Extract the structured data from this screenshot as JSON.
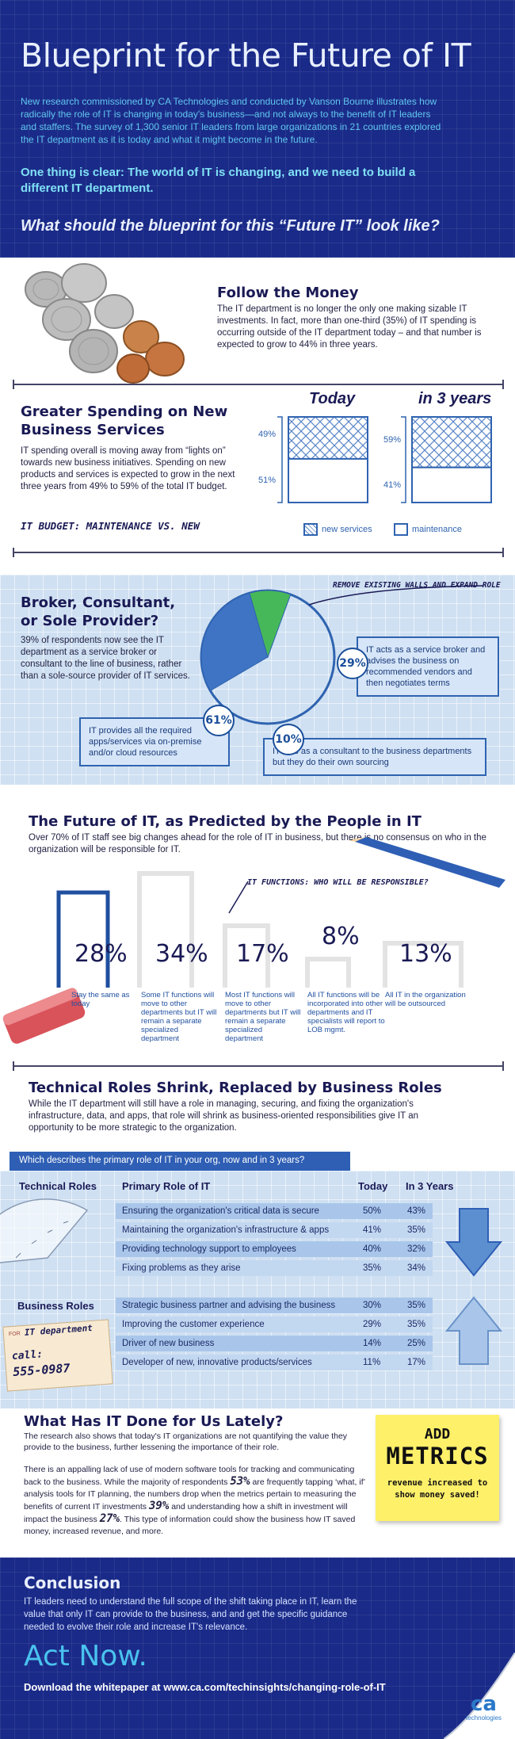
{
  "header": {
    "title": "Blueprint for the Future of IT",
    "intro": "New research commissioned by CA Technologies and conducted by Vanson Bourne illustrates how radically the role of IT is changing in today's business—and not always to the benefit of IT leaders and staffers. The survey of 1,300 senior IT leaders from large organizations in 21 countries explored the IT department as it is today and what it might become in the future.",
    "highlight": "One thing is clear: The world of IT is changing, and we need to build a different IT department.",
    "question": "What should the blueprint for this “Future IT” look like?"
  },
  "money": {
    "title": "Follow the Money",
    "body": "The IT department is no longer the only one making sizable IT investments. In fact, more than one-third (35%) of IT spending is occurring outside of the IT department today – and that number is expected to grow to 44% in three years."
  },
  "spending": {
    "title": "Greater Spending on New Business Services",
    "body": "IT spending overall is moving away from “lights on” towards new business initiatives. Spending on new products and services is expected to grow in the next three years from 49% to 59% of the total IT budget.",
    "budget_label": "IT BUDGET: MAINTENANCE VS. NEW",
    "col_today": "Today",
    "col_3y": "in 3 years",
    "today_new": "49%",
    "today_maint": "51%",
    "future_new": "59%",
    "future_maint": "41%",
    "legend_new": "new services",
    "legend_maint": "maintenance",
    "chart_data": {
      "type": "bar",
      "categories": [
        "Today",
        "in 3 years"
      ],
      "series": [
        {
          "name": "new services",
          "values": [
            49,
            59
          ]
        },
        {
          "name": "maintenance",
          "values": [
            51,
            41
          ]
        }
      ],
      "title": "IT BUDGET: MAINTENANCE VS. NEW"
    }
  },
  "broker": {
    "title": "Broker, Consultant, or Sole Provider?",
    "body": "39% of respondents now see the IT department as a service broker or consultant to the line of business, rather than a sole-source provider of IT services.",
    "banner": "REMOVE EXISTING WALLS AND EXPAND ROLE",
    "pct_broker": "29%",
    "text_broker": "IT acts as a service broker and advises the business on recommended vendors and then negotiates terms",
    "pct_provider": "61%",
    "text_provider": "IT provides all the required apps/services via on-premise and/or cloud resources",
    "pct_consult": "10%",
    "text_consult": "IT acts as a consultant to the business departments but they do their own sourcing",
    "chart_data": {
      "type": "pie",
      "categories": [
        "provider",
        "broker",
        "consultant"
      ],
      "values": [
        61,
        29,
        10
      ]
    }
  },
  "future": {
    "title": "The Future of IT, as Predicted by the People in IT",
    "body": "Over 70% of IT staff see big changes ahead for the role of IT in business, but there is no consensus on who in the organization will be responsible for IT.",
    "question_label": "IT FUNCTIONS: WHO WILL BE RESPONSIBLE?",
    "items": [
      {
        "pct": "28%",
        "text": "Stay the same as today"
      },
      {
        "pct": "34%",
        "text": "Some IT functions will move to other departments but IT will remain a separate specialized department"
      },
      {
        "pct": "17%",
        "text": "Most IT functions will move to other departments but IT will remain a separate specialized department"
      },
      {
        "pct": "8%",
        "text": "All IT functions will be incorporated into other departments and IT specialists will report to LOB mgmt."
      },
      {
        "pct": "13%",
        "text": "All IT in the organization will be outsourced"
      }
    ]
  },
  "roles": {
    "title": "Technical Roles Shrink, Replaced by Business Roles",
    "body": "While the IT department will still have a role in managing, securing, and fixing the organization's infrastructure, data, and apps, that role will shrink as business-oriented responsibilities give IT an opportunity to be more strategic to the organization.",
    "question_bar": "Which describes the primary role of IT in your org, now and in 3 years?",
    "col_primary": "Primary Role of IT",
    "col_today": "Today",
    "col_3y": "In 3 Years",
    "technical_label": "Technical Roles",
    "business_label": "Business Roles",
    "technical_rows": [
      {
        "role": "Ensuring the organization's critical data is secure",
        "today": "50%",
        "future": "43%"
      },
      {
        "role": "Maintaining the organization's infrastructure & apps",
        "today": "41%",
        "future": "35%"
      },
      {
        "role": "Providing technology support to employees",
        "today": "40%",
        "future": "32%"
      },
      {
        "role": "Fixing problems as they arise",
        "today": "35%",
        "future": "34%"
      }
    ],
    "business_rows": [
      {
        "role": "Strategic business partner and advising the business",
        "today": "30%",
        "future": "35%"
      },
      {
        "role": "Improving the customer experience",
        "today": "29%",
        "future": "35%"
      },
      {
        "role": "Driver of new business",
        "today": "14%",
        "future": "25%"
      },
      {
        "role": "Developer of new, innovative products/services",
        "today": "11%",
        "future": "17%"
      }
    ],
    "card_for": "FOR",
    "card_dept": "IT department",
    "card_call": "call:",
    "card_number": "555-0987"
  },
  "lately": {
    "title": "What Has IT Done for Us Lately?",
    "body1": "The research also shows that today's IT organizations are not quantifying the value they provide to the business, further lessening the importance of their role.",
    "body2a": "There is an appalling lack of use of modern software tools for tracking and communicating back to the business. While the majority of respondents",
    "pct1": "53%",
    "body2b": "are frequently tapping ‘what, if’ analysis tools for IT planning, the numbers drop when the metrics pertain to measuring the benefits of current IT investments",
    "pct2": "39%",
    "body2c": "and understanding how a shift in investment will impact the business",
    "pct3": "27%",
    "body2d": ". This type of information could show the business how IT saved money, increased revenue, and more.",
    "note_add": "ADD",
    "note_metrics": "METRICS",
    "note_sub": "revenue increased to show money saved!"
  },
  "conclusion": {
    "title": "Conclusion",
    "body": "IT leaders need to understand the full scope of the shift taking place in IT, learn the value that only IT can provide to the business, and and get the specific guidance needed to evolve their role and increase IT's relevance.",
    "cta": "Act Now.",
    "download": "Download the whitepaper at www.ca.com/techinsights/changing-role-of-IT",
    "logo": "ca",
    "logo_sub": "technologies"
  },
  "colors": {
    "navy": "#1a2a88",
    "accent_blue": "#2f63b0",
    "cyan": "#7fd6f0",
    "green": "#46b85a",
    "sticky": "#fff06a"
  }
}
